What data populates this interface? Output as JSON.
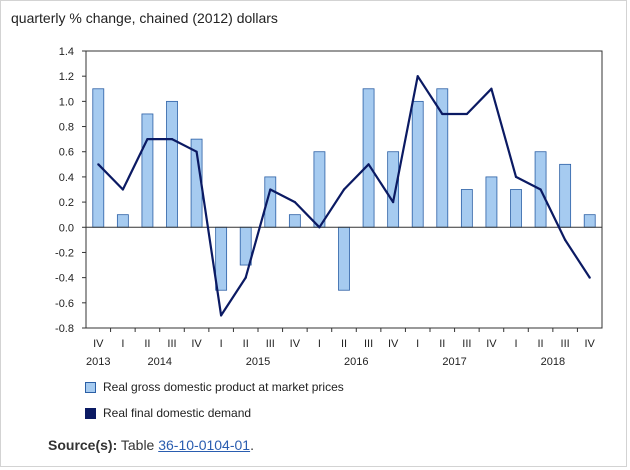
{
  "colors": {
    "bar_fill": "#a6cbf0",
    "bar_stroke": "#2b5fa5",
    "line": "#0b1a63",
    "link": "#2a5db0"
  },
  "source": {
    "label": "Source(s):",
    "prefix": "Table",
    "link_text": "36-10-0104-01",
    "suffix": "."
  },
  "chart_data": {
    "type": "bar",
    "ylabel": "quarterly % change, chained (2012) dollars",
    "ylim": [
      -0.8,
      1.4
    ],
    "yticks": [
      "1.4",
      "1.2",
      "1.0",
      "0.8",
      "0.6",
      "0.4",
      "0.2",
      "0.0",
      "-0.2",
      "-0.4",
      "-0.6",
      "-0.8"
    ],
    "quarters": [
      "IV",
      "I",
      "II",
      "III",
      "IV",
      "I",
      "II",
      "III",
      "IV",
      "I",
      "II",
      "III",
      "IV",
      "I",
      "II",
      "III",
      "IV",
      "I",
      "II",
      "III",
      "IV"
    ],
    "years": [
      {
        "label": "2013",
        "center_index": 0
      },
      {
        "label": "2014",
        "center_index": 2.5
      },
      {
        "label": "2015",
        "center_index": 6.5
      },
      {
        "label": "2016",
        "center_index": 10.5
      },
      {
        "label": "2017",
        "center_index": 14.5
      },
      {
        "label": "2018",
        "center_index": 18.5
      }
    ],
    "grid": false,
    "legend_position": "bottom",
    "series": [
      {
        "name": "Real gross domestic product at market prices",
        "type": "bar",
        "values": [
          1.1,
          0.1,
          0.9,
          1.0,
          0.7,
          -0.5,
          -0.3,
          0.4,
          0.1,
          0.6,
          -0.5,
          1.1,
          0.6,
          1.0,
          1.1,
          0.3,
          0.4,
          0.3,
          0.6,
          0.5,
          0.1
        ]
      },
      {
        "name": "Real final domestic demand",
        "type": "line",
        "values": [
          0.5,
          0.3,
          0.7,
          0.7,
          0.6,
          -0.7,
          -0.4,
          0.3,
          0.2,
          0.0,
          0.3,
          0.5,
          0.2,
          1.2,
          0.9,
          0.9,
          1.1,
          0.4,
          0.3,
          -0.1,
          -0.4
        ]
      }
    ]
  }
}
